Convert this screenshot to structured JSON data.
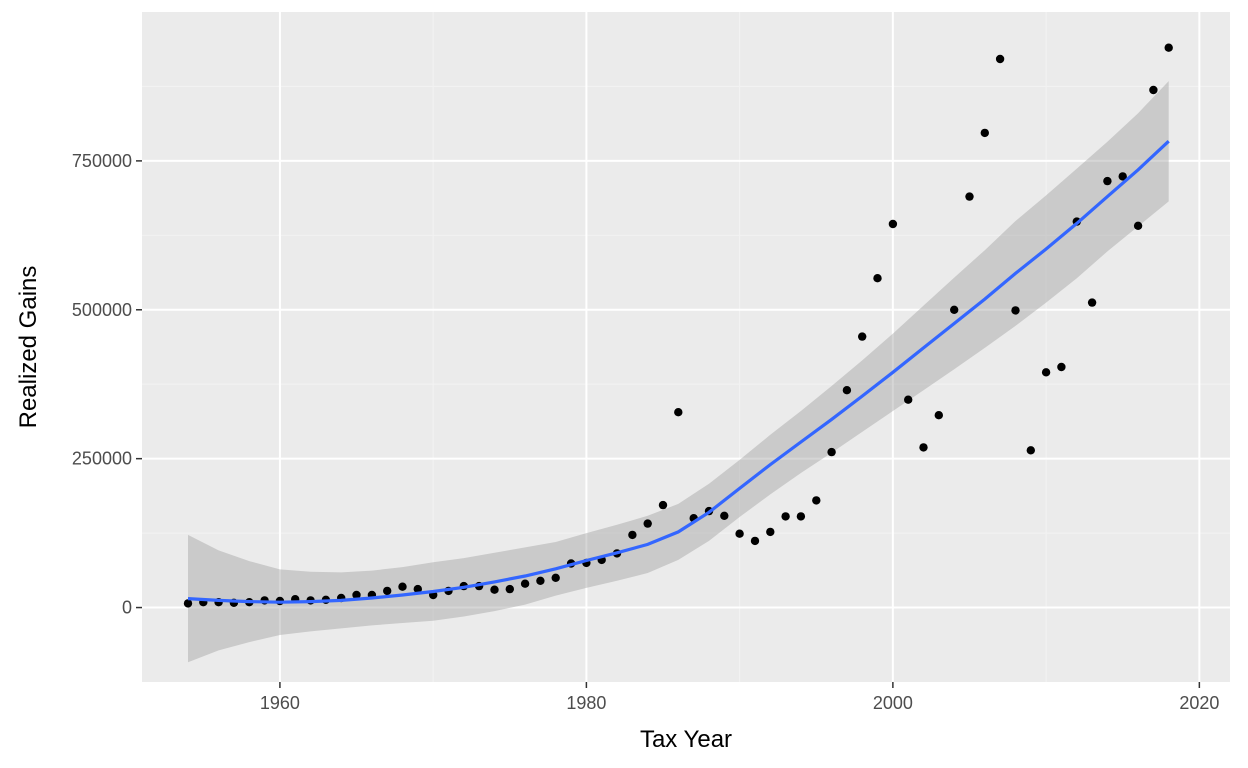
{
  "chart_data": {
    "type": "scatter",
    "title": "",
    "xlabel": "Tax Year",
    "ylabel": "Realized Gains",
    "xlim": [
      1951,
      2022
    ],
    "ylim": [
      -125000,
      1000000
    ],
    "x_ticks": [
      1960,
      1980,
      2000,
      2020
    ],
    "y_ticks": [
      0,
      250000,
      500000,
      750000
    ],
    "x_tick_labels": [
      "1960",
      "1980",
      "2000",
      "2020"
    ],
    "y_tick_labels": [
      "0",
      "250000",
      "500000",
      "750000"
    ],
    "grid": true,
    "legend": "none",
    "colors": {
      "panel_background": "#ebebeb",
      "grid_major": "#ffffff",
      "grid_minor": "#f2f2f2",
      "points": "#000000",
      "smooth_line": "#3366ff",
      "confidence_band": "#999999"
    },
    "series": [
      {
        "kind": "points",
        "x": [
          1954,
          1955,
          1956,
          1957,
          1958,
          1959,
          1960,
          1961,
          1962,
          1963,
          1964,
          1965,
          1966,
          1967,
          1968,
          1969,
          1970,
          1971,
          1972,
          1973,
          1974,
          1975,
          1976,
          1977,
          1978,
          1979,
          1980,
          1981,
          1982,
          1983,
          1984,
          1985,
          1986,
          1987,
          1988,
          1989,
          1990,
          1991,
          1992,
          1993,
          1994,
          1995,
          1996,
          1997,
          1998,
          1999,
          2000,
          2001,
          2002,
          2003,
          2004,
          2005,
          2006,
          2007,
          2008,
          2009,
          2010,
          2011,
          2012,
          2013,
          2014,
          2015,
          2016,
          2017,
          2018
        ],
        "y": [
          7000,
          9000,
          9000,
          8000,
          9000,
          12000,
          11000,
          14000,
          12000,
          13000,
          16000,
          21000,
          21000,
          28000,
          35000,
          31000,
          21000,
          28000,
          36000,
          36000,
          30000,
          31000,
          40000,
          45000,
          50000,
          74000,
          75000,
          80000,
          91000,
          122000,
          141000,
          172000,
          328000,
          150000,
          162000,
          154000,
          124000,
          112000,
          127000,
          153000,
          153000,
          180000,
          261000,
          365000,
          455000,
          553000,
          644000,
          349000,
          269000,
          323000,
          500000,
          690000,
          797000,
          921000,
          499000,
          264000,
          395000,
          404000,
          648000,
          512000,
          716000,
          724000,
          641000,
          869000,
          940000
        ]
      },
      {
        "kind": "smooth",
        "x": [
          1954,
          1956,
          1958,
          1960,
          1962,
          1964,
          1966,
          1968,
          1970,
          1972,
          1974,
          1976,
          1978,
          1980,
          1982,
          1984,
          1986,
          1988,
          1990,
          1992,
          1994,
          1996,
          1998,
          2000,
          2002,
          2004,
          2006,
          2008,
          2010,
          2012,
          2014,
          2016,
          2018
        ],
        "y": [
          15000,
          12000,
          10000,
          9000,
          10000,
          12000,
          16000,
          21000,
          27000,
          34000,
          43000,
          53000,
          65000,
          79000,
          92000,
          106000,
          127000,
          160000,
          200000,
          240000,
          278000,
          316000,
          355000,
          395000,
          436000,
          477000,
          518000,
          561000,
          602000,
          645000,
          690000,
          735000,
          783000
        ],
        "lower": [
          -92000,
          -72000,
          -58000,
          -46000,
          -40000,
          -35000,
          -30000,
          -26000,
          -22000,
          -15000,
          -6000,
          5000,
          20000,
          33000,
          45000,
          58000,
          80000,
          112000,
          152000,
          190000,
          226000,
          260000,
          295000,
          330000,
          365000,
          400000,
          436000,
          473000,
          512000,
          553000,
          598000,
          640000,
          682000
        ],
        "upper": [
          122000,
          96000,
          78000,
          64000,
          60000,
          59000,
          62000,
          68000,
          76000,
          83000,
          92000,
          101000,
          110000,
          125000,
          139000,
          154000,
          174000,
          208000,
          248000,
          290000,
          330000,
          372000,
          415000,
          460000,
          507000,
          554000,
          600000,
          649000,
          692000,
          737000,
          782000,
          830000,
          884000
        ]
      }
    ]
  }
}
